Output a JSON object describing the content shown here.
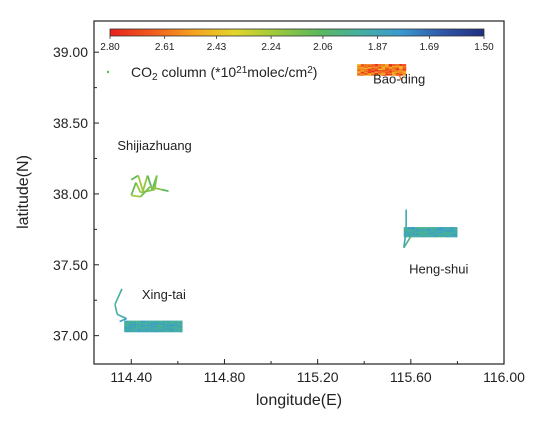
{
  "chart_data": {
    "type": "scatter",
    "xlabel": "longitude(E)",
    "ylabel": "latitude(N)",
    "xlim": [
      114.24,
      116.0
    ],
    "ylim": [
      36.8,
      39.22
    ],
    "x_ticks": [
      "114.40",
      "114.80",
      "115.20",
      "115.60",
      "116.00"
    ],
    "x_tick_values": [
      114.4,
      114.8,
      115.2,
      115.6,
      116.0
    ],
    "y_ticks": [
      "37.00",
      "37.50",
      "38.00",
      "38.50",
      "39.00"
    ],
    "y_tick_values": [
      37.0,
      37.5,
      38.0,
      38.5,
      39.0
    ],
    "grid": false,
    "colorbar": {
      "label": "CO",
      "label_sub": "2",
      "label_rest": " column (*10",
      "label_sup": "21",
      "label_tail": "molec/cm",
      "label_sup2": "2",
      "label_close": ")",
      "ticks": [
        "2.80",
        "2.61",
        "2.43",
        "2.24",
        "2.06",
        "1.87",
        "1.69",
        "1.50"
      ],
      "tick_values": [
        2.8,
        2.61,
        2.43,
        2.24,
        2.06,
        1.87,
        1.69,
        1.5
      ],
      "range": [
        2.8,
        1.5
      ],
      "colors": [
        "#e8211c",
        "#f05a1e",
        "#f5a21f",
        "#e3d52b",
        "#9cc93c",
        "#5cb85b",
        "#45b0a0",
        "#3a9ad0",
        "#2f57a8",
        "#1f2f80"
      ]
    },
    "annotations": [
      {
        "text": "Bao-ding",
        "x": 115.55,
        "y": 38.78
      },
      {
        "text": "Shijiazhuang",
        "x": 114.5,
        "y": 38.31
      },
      {
        "text": "Heng-shui",
        "x": 115.72,
        "y": 37.44
      },
      {
        "text": "Xing-tai",
        "x": 114.54,
        "y": 37.26
      }
    ],
    "series": [
      {
        "region": "Bao-ding",
        "x_range": [
          115.37,
          115.58
        ],
        "y_range": [
          38.84,
          38.91
        ],
        "value_range": [
          2.43,
          2.8
        ]
      },
      {
        "region": "Shijiazhuang",
        "x_range": [
          114.39,
          114.53
        ],
        "y_range": [
          37.97,
          38.14
        ],
        "value_range": [
          1.95,
          2.24
        ]
      },
      {
        "region": "Heng-shui",
        "x_range": [
          115.57,
          115.8
        ],
        "y_range": [
          37.6,
          37.89
        ],
        "value_range": [
          1.8,
          2.0
        ]
      },
      {
        "region": "Xing-tai",
        "x_range": [
          114.32,
          114.62
        ],
        "y_range": [
          37.03,
          37.34
        ],
        "value_range": [
          1.82,
          1.98
        ]
      }
    ]
  }
}
